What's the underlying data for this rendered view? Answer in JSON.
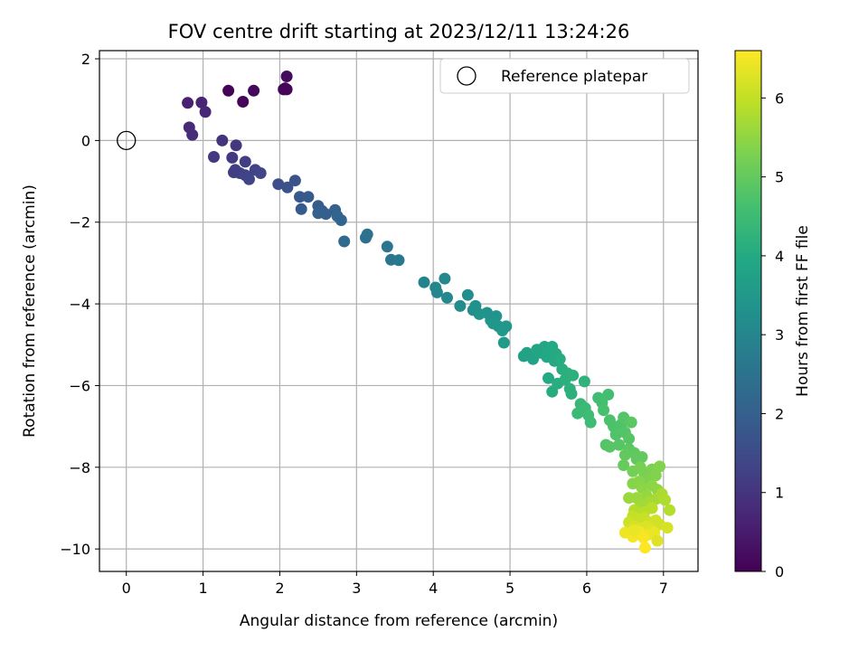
{
  "chart_data": {
    "type": "scatter",
    "title": "FOV centre drift starting at 2023/12/11 13:24:26",
    "xlabel": "Angular distance from reference (arcmin)",
    "ylabel": "Rotation from reference (arcmin)",
    "xlim": [
      -0.35,
      7.45
    ],
    "ylim": [
      -10.55,
      2.2
    ],
    "xticks": [
      0,
      1,
      2,
      3,
      4,
      5,
      6,
      7
    ],
    "yticks": [
      -10,
      -8,
      -6,
      -4,
      -2,
      0,
      2
    ],
    "grid": true,
    "legend": {
      "position": "top-right",
      "entries": [
        "Reference platepar"
      ]
    },
    "reference_point": {
      "x": 0,
      "y": 0,
      "label": "Reference platepar"
    },
    "colorbar": {
      "label": "Hours from first FF file",
      "range": [
        0,
        6.6
      ],
      "ticks": [
        0,
        1,
        2,
        3,
        4,
        5,
        6
      ],
      "colormap": "viridis"
    },
    "points": [
      [
        1.33,
        1.22,
        0.05
      ],
      [
        1.52,
        0.95,
        0.1
      ],
      [
        1.66,
        1.22,
        0.15
      ],
      [
        2.05,
        1.25,
        0.1
      ],
      [
        2.09,
        1.25,
        0.15
      ],
      [
        2.09,
        1.57,
        0.2
      ],
      [
        2.07,
        1.28,
        0.1
      ],
      [
        0.8,
        0.92,
        0.6
      ],
      [
        0.98,
        0.93,
        0.7
      ],
      [
        1.03,
        0.7,
        0.75
      ],
      [
        0.82,
        0.32,
        0.8
      ],
      [
        0.86,
        0.14,
        0.85
      ],
      [
        1.25,
        0.0,
        1.0
      ],
      [
        1.43,
        -0.12,
        1.05
      ],
      [
        1.38,
        -0.42,
        1.1
      ],
      [
        1.14,
        -0.4,
        1.1
      ],
      [
        1.55,
        -0.52,
        1.2
      ],
      [
        1.42,
        -0.72,
        1.2
      ],
      [
        1.48,
        -0.8,
        1.25
      ],
      [
        1.4,
        -0.78,
        1.2
      ],
      [
        1.55,
        -0.85,
        1.3
      ],
      [
        1.68,
        -0.72,
        1.3
      ],
      [
        1.6,
        -0.95,
        1.35
      ],
      [
        1.75,
        -0.8,
        1.4
      ],
      [
        1.98,
        -1.07,
        1.6
      ],
      [
        2.1,
        -1.15,
        1.65
      ],
      [
        2.2,
        -0.98,
        1.7
      ],
      [
        2.26,
        -1.38,
        1.8
      ],
      [
        2.37,
        -1.38,
        1.85
      ],
      [
        2.28,
        -1.68,
        1.85
      ],
      [
        2.5,
        -1.6,
        1.9
      ],
      [
        2.55,
        -1.72,
        1.95
      ],
      [
        2.5,
        -1.78,
        2.0
      ],
      [
        2.6,
        -1.8,
        2.0
      ],
      [
        2.72,
        -1.7,
        2.05
      ],
      [
        2.75,
        -1.85,
        2.1
      ],
      [
        2.8,
        -1.95,
        2.15
      ],
      [
        2.84,
        -2.47,
        2.3
      ],
      [
        3.12,
        -2.38,
        2.4
      ],
      [
        3.14,
        -2.3,
        2.45
      ],
      [
        3.4,
        -2.6,
        2.55
      ],
      [
        3.45,
        -2.92,
        2.6
      ],
      [
        3.55,
        -2.93,
        2.65
      ],
      [
        3.88,
        -3.47,
        2.9
      ],
      [
        4.03,
        -3.6,
        3.0
      ],
      [
        4.05,
        -3.72,
        3.0
      ],
      [
        4.15,
        -3.38,
        3.05
      ],
      [
        4.18,
        -3.85,
        3.1
      ],
      [
        4.35,
        -4.05,
        3.2
      ],
      [
        4.45,
        -3.78,
        3.25
      ],
      [
        4.52,
        -4.15,
        3.25
      ],
      [
        4.55,
        -4.05,
        3.3
      ],
      [
        4.6,
        -4.25,
        3.35
      ],
      [
        4.7,
        -4.22,
        3.35
      ],
      [
        4.75,
        -4.4,
        3.4
      ],
      [
        4.82,
        -4.3,
        3.4
      ],
      [
        4.78,
        -4.48,
        3.45
      ],
      [
        4.85,
        -4.55,
        3.45
      ],
      [
        4.95,
        -4.55,
        3.5
      ],
      [
        4.9,
        -4.65,
        3.5
      ],
      [
        4.92,
        -4.95,
        3.55
      ],
      [
        5.18,
        -5.28,
        3.75
      ],
      [
        5.22,
        -5.2,
        3.8
      ],
      [
        5.3,
        -5.35,
        3.8
      ],
      [
        5.35,
        -5.12,
        3.85
      ],
      [
        5.4,
        -5.2,
        3.85
      ],
      [
        5.45,
        -5.05,
        3.9
      ],
      [
        5.5,
        -5.1,
        3.9
      ],
      [
        5.55,
        -5.05,
        3.95
      ],
      [
        5.48,
        -5.3,
        3.95
      ],
      [
        5.6,
        -5.22,
        4.0
      ],
      [
        5.58,
        -5.4,
        4.0
      ],
      [
        5.65,
        -5.35,
        4.05
      ],
      [
        5.5,
        -5.82,
        4.0
      ],
      [
        5.55,
        -6.15,
        4.05
      ],
      [
        5.62,
        -5.95,
        4.1
      ],
      [
        5.68,
        -5.6,
        4.1
      ],
      [
        5.72,
        -5.85,
        4.15
      ],
      [
        5.75,
        -5.7,
        4.15
      ],
      [
        5.78,
        -6.08,
        4.2
      ],
      [
        5.8,
        -6.2,
        4.2
      ],
      [
        5.82,
        -5.75,
        4.2
      ],
      [
        5.97,
        -5.9,
        4.25
      ],
      [
        5.92,
        -6.45,
        4.4
      ],
      [
        5.98,
        -6.55,
        4.45
      ],
      [
        6.02,
        -6.72,
        4.5
      ],
      [
        5.88,
        -6.68,
        4.45
      ],
      [
        6.05,
        -6.9,
        4.5
      ],
      [
        6.15,
        -6.3,
        4.55
      ],
      [
        6.2,
        -6.42,
        4.6
      ],
      [
        6.28,
        -6.22,
        4.6
      ],
      [
        6.22,
        -6.6,
        4.65
      ],
      [
        6.3,
        -6.85,
        4.7
      ],
      [
        6.35,
        -7.0,
        4.7
      ],
      [
        6.38,
        -7.2,
        4.75
      ],
      [
        6.45,
        -6.95,
        4.75
      ],
      [
        6.48,
        -6.78,
        4.8
      ],
      [
        6.5,
        -7.15,
        4.8
      ],
      [
        6.55,
        -7.3,
        4.85
      ],
      [
        6.42,
        -7.45,
        4.85
      ],
      [
        6.58,
        -6.9,
        4.9
      ],
      [
        6.25,
        -7.45,
        4.8
      ],
      [
        6.3,
        -7.5,
        4.85
      ],
      [
        6.55,
        -7.55,
        4.9
      ],
      [
        6.62,
        -7.65,
        4.95
      ],
      [
        6.65,
        -7.8,
        5.0
      ],
      [
        6.72,
        -7.75,
        5.0
      ],
      [
        6.5,
        -7.7,
        5.0
      ],
      [
        6.48,
        -7.95,
        5.05
      ],
      [
        6.6,
        -8.1,
        5.2
      ],
      [
        6.7,
        -8.0,
        5.25
      ],
      [
        6.75,
        -8.15,
        5.25
      ],
      [
        6.8,
        -8.3,
        5.3
      ],
      [
        6.85,
        -8.05,
        5.3
      ],
      [
        6.9,
        -8.2,
        5.35
      ],
      [
        6.95,
        -7.98,
        5.35
      ],
      [
        6.68,
        -8.35,
        5.4
      ],
      [
        6.6,
        -8.4,
        5.4
      ],
      [
        6.72,
        -8.5,
        5.45
      ],
      [
        6.85,
        -8.45,
        5.45
      ],
      [
        6.92,
        -8.55,
        5.5
      ],
      [
        6.78,
        -8.7,
        5.55
      ],
      [
        6.65,
        -8.75,
        5.6
      ],
      [
        6.7,
        -8.9,
        5.65
      ],
      [
        6.55,
        -8.75,
        5.6
      ],
      [
        6.82,
        -8.85,
        5.7
      ],
      [
        6.9,
        -8.78,
        5.7
      ],
      [
        6.98,
        -8.65,
        5.75
      ],
      [
        7.02,
        -8.8,
        5.8
      ],
      [
        7.08,
        -9.05,
        5.85
      ],
      [
        6.62,
        -9.05,
        5.85
      ],
      [
        6.75,
        -9.1,
        5.9
      ],
      [
        6.85,
        -9.0,
        5.9
      ],
      [
        6.6,
        -9.2,
        6.0
      ],
      [
        6.68,
        -9.3,
        6.05
      ],
      [
        6.75,
        -9.25,
        6.05
      ],
      [
        6.82,
        -9.35,
        6.1
      ],
      [
        6.55,
        -9.35,
        6.1
      ],
      [
        6.9,
        -9.3,
        6.15
      ],
      [
        6.95,
        -9.4,
        6.15
      ],
      [
        6.62,
        -9.45,
        6.2
      ],
      [
        6.7,
        -9.5,
        6.25
      ],
      [
        6.78,
        -9.45,
        6.25
      ],
      [
        6.85,
        -9.55,
        6.3
      ],
      [
        6.58,
        -9.55,
        6.3
      ],
      [
        6.65,
        -9.6,
        6.35
      ],
      [
        6.72,
        -9.62,
        6.35
      ],
      [
        6.8,
        -9.65,
        6.4
      ],
      [
        6.88,
        -9.6,
        6.4
      ],
      [
        7.05,
        -9.48,
        6.2
      ],
      [
        6.5,
        -9.6,
        6.45
      ],
      [
        6.6,
        -9.7,
        6.5
      ],
      [
        6.68,
        -9.58,
        6.5
      ],
      [
        6.74,
        -9.72,
        6.55
      ],
      [
        6.92,
        -9.8,
        6.3
      ],
      [
        6.76,
        -9.97,
        6.6
      ],
      [
        6.62,
        -9.55,
        6.4
      ]
    ]
  }
}
